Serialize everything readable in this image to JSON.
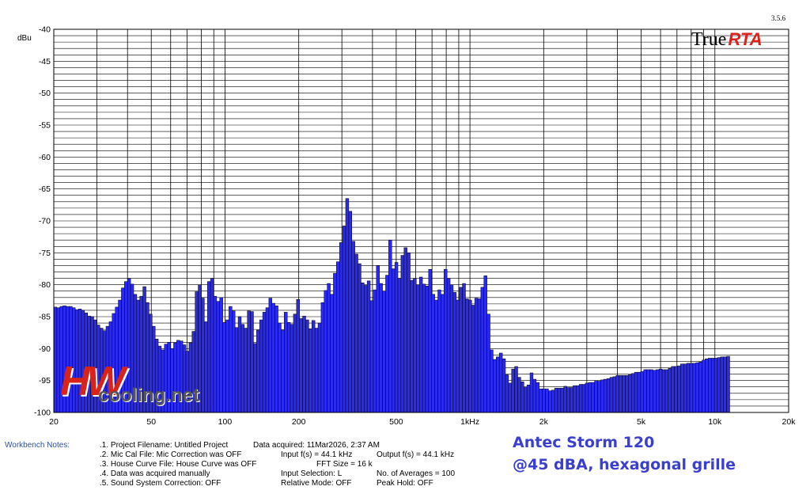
{
  "header": {
    "version": "3.5.6",
    "logo_part1": "True",
    "logo_part2": "RTA"
  },
  "watermark": {
    "mark": "HW",
    "site": "cooling.net"
  },
  "workbench": {
    "title": "Workbench Notes:",
    "notes": [
      [
        ".1. Project Filename: Untitled Project",
        "Data acquired: 11Mar2026, 2:37 AM",
        ""
      ],
      [
        ".2. Mic Cal File: Mic Correction was OFF",
        "Input f(s) = 44.1 kHz",
        "Output f(s) = 44.1 kHz"
      ],
      [
        ".3. House Curve File: House Curve was OFF",
        "FFT Size = 16 k",
        ""
      ],
      [
        ".4. Data was acquired manually",
        "Input Selection: L",
        "No. of Averages = 100"
      ],
      [
        ".5. Sound System Correction: OFF",
        "Relative Mode: OFF",
        "Peak Hold: OFF"
      ]
    ]
  },
  "caption": {
    "line1": "Antec Storm 120",
    "line2": "@45 dBA, hexagonal grille"
  },
  "chart_data": {
    "type": "bar",
    "ylabel": "dBu",
    "xscale": "log",
    "xlim": [
      20,
      20000
    ],
    "ylim": [
      -100,
      -40
    ],
    "grid": true,
    "yticks": [
      -40,
      -45,
      -50,
      -55,
      -60,
      -65,
      -70,
      -75,
      -80,
      -85,
      -90,
      -95,
      -100
    ],
    "xticks": [
      {
        "value": 20,
        "label": "20"
      },
      {
        "value": 50,
        "label": "50"
      },
      {
        "value": 100,
        "label": "100"
      },
      {
        "value": 200,
        "label": "200"
      },
      {
        "value": 500,
        "label": "500"
      },
      {
        "value": 1000,
        "label": "1kHz"
      },
      {
        "value": 2000,
        "label": "2k"
      },
      {
        "value": 5000,
        "label": "5k"
      },
      {
        "value": 10000,
        "label": "10k"
      },
      {
        "value": 20000,
        "label": "20k"
      }
    ],
    "bars_per_octave": 24,
    "bar_color": "#2b2bf0",
    "values": [
      -83.5,
      -83.6,
      -83.4,
      -83.3,
      -83.4,
      -83.4,
      -83.6,
      -83.9,
      -83.8,
      -84,
      -84.4,
      -84.9,
      -85,
      -85.5,
      -86.3,
      -86.8,
      -87.2,
      -86.5,
      -85.8,
      -84.5,
      -83.5,
      -82.4,
      -80.5,
      -79.5,
      -79,
      -79.9,
      -81.5,
      -82.4,
      -81.8,
      -80.3,
      -82.8,
      -84.6,
      -86.5,
      -88.5,
      -89.6,
      -90.2,
      -89.3,
      -89,
      -90,
      -89.1,
      -88.7,
      -88.8,
      -89.4,
      -90.4,
      -89.1,
      -87.3,
      -81.1,
      -80,
      -82.1,
      -85.8,
      -79.5,
      -79,
      -81.8,
      -82.6,
      -82,
      -85.9,
      -85.5,
      -83.4,
      -84.1,
      -86.7,
      -85,
      -86.2,
      -86.8,
      -84.1,
      -84.2,
      -89.2,
      -87.1,
      -85.5,
      -84.3,
      -83.6,
      -82.1,
      -82.9,
      -83.3,
      -86,
      -87.1,
      -84.3,
      -85.9,
      -86.2,
      -84.6,
      -82.3,
      -85.3,
      -84.9,
      -85.5,
      -86.9,
      -85.6,
      -86.8,
      -86,
      -82.8,
      -80.9,
      -79.8,
      -81.5,
      -78.2,
      -76.4,
      -73.4,
      -70.8,
      -66.5,
      -68.5,
      -73.2,
      -75.2,
      -76.7,
      -79.7,
      -80.1,
      -79.4,
      -82.5,
      -80.8,
      -77,
      -79.8,
      -81,
      -78.5,
      -73,
      -77.5,
      -76.5,
      -79,
      -75.4,
      -74.2,
      -75,
      -79.3,
      -79,
      -80,
      -78.8,
      -79.9,
      -80.2,
      -77.6,
      -81.5,
      -82.4,
      -80.8,
      -81.5,
      -77.6,
      -79,
      -80,
      -81.2,
      -82.4,
      -80.4,
      -79.8,
      -82.2,
      -82.4,
      -83.2,
      -82.1,
      -82.2,
      -80.4,
      -78.6,
      -84.6,
      -90.2,
      -91.7,
      -91.3,
      -90.7,
      -91.6,
      -94.1,
      -95.4,
      -93.2,
      -92.8,
      -94.5,
      -95.2,
      -96,
      -95.7,
      -93.8,
      -94.8,
      -95.3,
      -96.3,
      -96.3,
      -96.3,
      -96.6,
      -96.5,
      -96.2,
      -96.2,
      -96.2,
      -95.9,
      -96.1,
      -96.1,
      -95.8,
      -95.8,
      -95.6,
      -95.6,
      -95.4,
      -95.3,
      -95.3,
      -95,
      -95.1,
      -94.9,
      -94.8,
      -94.7,
      -94.5,
      -94.4,
      -94.2,
      -94.2,
      -94.2,
      -94.2,
      -94.1,
      -93.9,
      -93.7,
      -93.7,
      -93.6,
      -93.3,
      -93.3,
      -93.3,
      -93.4,
      -93.3,
      -93.2,
      -93.3,
      -93.3,
      -93.1,
      -92.8,
      -92.8,
      -92.7,
      -92.4,
      -92.4,
      -92.3,
      -92.3,
      -92.3,
      -92.2,
      -92.1,
      -91.8,
      -91.6,
      -91.5,
      -91.5,
      -91.5,
      -91.4,
      -91.3,
      -91.3,
      -91.2
    ]
  }
}
